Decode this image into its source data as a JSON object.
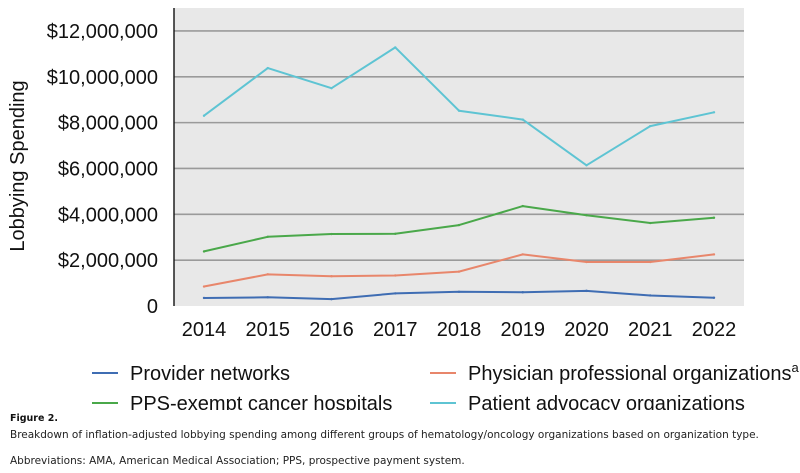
{
  "figure": {
    "label": "Figure 2.",
    "caption": "Breakdown of inflation-adjusted lobbying spending among different groups of hematology/oncology organizations based on organization type.",
    "abbreviations": "Abbreviations: AMA, American Medical Association; PPS, prospective payment system."
  },
  "chart_data": {
    "type": "line",
    "title": "",
    "xlabel": "",
    "ylabel": "Lobbying Spending",
    "categories": [
      "2014",
      "2015",
      "2016",
      "2017",
      "2018",
      "2019",
      "2020",
      "2021",
      "2022"
    ],
    "ylim": [
      0,
      13000000
    ],
    "yticks": [
      0,
      2000000,
      4000000,
      6000000,
      8000000,
      10000000,
      12000000
    ],
    "ytick_labels": [
      "0",
      "$2,000,000",
      "$4,000,000",
      "$6,000,000",
      "$8,000,000",
      "$10,000,000",
      "$12,000,000"
    ],
    "grid": true,
    "legend_position": "bottom",
    "series": [
      {
        "name": "Provider networks",
        "color": "#3f6db3",
        "values": [
          350000,
          380000,
          300000,
          550000,
          620000,
          600000,
          660000,
          460000,
          360000
        ]
      },
      {
        "name": "Physician professional organizations",
        "name_superscript": "a",
        "color": "#e8866b",
        "values": [
          850000,
          1380000,
          1300000,
          1330000,
          1500000,
          2250000,
          1920000,
          1920000,
          2250000
        ]
      },
      {
        "name": "PPS-exempt cancer hospitals",
        "color": "#4aa84a",
        "values": [
          2380000,
          3020000,
          3140000,
          3150000,
          3530000,
          4360000,
          3960000,
          3620000,
          3850000
        ]
      },
      {
        "name": "Patient advocacy organizations",
        "color": "#5ec4d3",
        "values": [
          8300000,
          10380000,
          9500000,
          11280000,
          8520000,
          8130000,
          6140000,
          7850000,
          8450000
        ]
      }
    ]
  }
}
